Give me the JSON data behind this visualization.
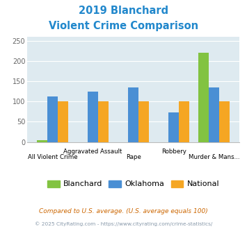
{
  "title_line1": "2019 Blanchard",
  "title_line2": "Violent Crime Comparison",
  "title_color": "#2288cc",
  "cat_labels_top": [
    "",
    "Aggravated Assault",
    "",
    "Robbery",
    ""
  ],
  "cat_labels_bot": [
    "All Violent Crime",
    "",
    "Rape",
    "",
    "Murder & Mans..."
  ],
  "blanchard": [
    5,
    0,
    0,
    0,
    220
  ],
  "oklahoma": [
    113,
    125,
    135,
    73,
    135
  ],
  "national": [
    100,
    100,
    100,
    100,
    100
  ],
  "blanchard_color": "#82c341",
  "oklahoma_color": "#4a8fd4",
  "national_color": "#f5a623",
  "ylim": [
    0,
    260
  ],
  "yticks": [
    0,
    50,
    100,
    150,
    200,
    250
  ],
  "plot_bg": "#deeaf0",
  "legend_labels": [
    "Blanchard",
    "Oklahoma",
    "National"
  ],
  "footnote1": "Compared to U.S. average. (U.S. average equals 100)",
  "footnote2": "© 2025 CityRating.com - https://www.cityrating.com/crime-statistics/",
  "footnote1_color": "#cc6600",
  "footnote2_color": "#8899aa"
}
